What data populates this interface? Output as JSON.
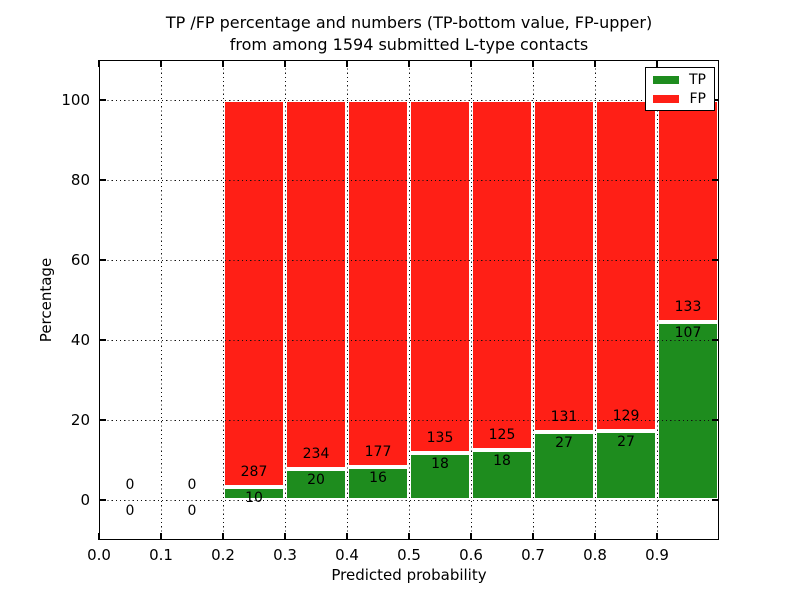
{
  "title": {
    "line1": "TP /FP percentage and numbers (TP-bottom value, FP-upper)",
    "line2": "from among 1594 submitted L-type contacts"
  },
  "chart_data": {
    "type": "bar",
    "stacked": true,
    "normalized": "each bar stacks TP%+FP% to 100%",
    "title": "TP /FP percentage and numbers (TP-bottom value, FP-upper) from among 1594 submitted L-type contacts",
    "xlabel": "Predicted probability",
    "ylabel": "Percentage",
    "xlim": [
      0.0,
      1.0
    ],
    "ylim": [
      -10,
      110
    ],
    "grid": true,
    "grid_style": "dotted",
    "x_ticks": [
      "0.0",
      "0.1",
      "0.2",
      "0.3",
      "0.4",
      "0.5",
      "0.6",
      "0.7",
      "0.8",
      "0.9"
    ],
    "y_ticks": [
      0,
      20,
      40,
      60,
      80,
      100
    ],
    "total_contacts": 1594,
    "legend": {
      "position": "upper right",
      "entries": [
        {
          "label": "TP",
          "color": "#1e8c1e"
        },
        {
          "label": "FP",
          "color": "#ff1f16"
        }
      ]
    },
    "bins": [
      {
        "range": [
          0.0,
          0.1
        ],
        "tp": 0,
        "fp": 0,
        "tp_pct": 0.0
      },
      {
        "range": [
          0.1,
          0.2
        ],
        "tp": 0,
        "fp": 0,
        "tp_pct": 0.0
      },
      {
        "range": [
          0.2,
          0.3
        ],
        "tp": 10,
        "fp": 287,
        "tp_pct": 3.4
      },
      {
        "range": [
          0.3,
          0.4
        ],
        "tp": 20,
        "fp": 234,
        "tp_pct": 7.9
      },
      {
        "range": [
          0.4,
          0.5
        ],
        "tp": 16,
        "fp": 177,
        "tp_pct": 8.3
      },
      {
        "range": [
          0.5,
          0.6
        ],
        "tp": 18,
        "fp": 135,
        "tp_pct": 11.8
      },
      {
        "range": [
          0.6,
          0.7
        ],
        "tp": 18,
        "fp": 125,
        "tp_pct": 12.6
      },
      {
        "range": [
          0.7,
          0.8
        ],
        "tp": 27,
        "fp": 131,
        "tp_pct": 17.1
      },
      {
        "range": [
          0.8,
          0.9
        ],
        "tp": 27,
        "fp": 129,
        "tp_pct": 17.3
      },
      {
        "range": [
          0.9,
          1.0
        ],
        "tp": 107,
        "fp": 133,
        "tp_pct": 44.6
      }
    ]
  },
  "colors": {
    "tp": "#1e8c1e",
    "fp": "#ff1f16",
    "grid": "#111111",
    "axis": "#000000",
    "background": "#ffffff",
    "bar_edge": "#ffffff"
  }
}
